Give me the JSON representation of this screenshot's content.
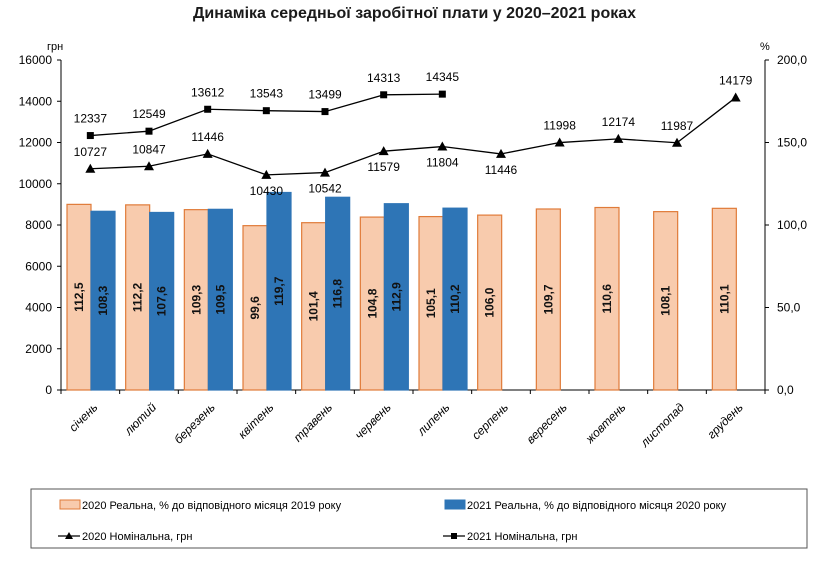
{
  "chart_data": {
    "type": "bar+line",
    "title": "Динаміка середньої заробітної плати у 2020–2021 роках",
    "ylabel_left": "грн",
    "ylabel_right": "%",
    "ylim_left": [
      0,
      16000
    ],
    "ylim_right": [
      0,
      200
    ],
    "yticks_left": [
      "0",
      "2000",
      "4000",
      "6000",
      "8000",
      "10000",
      "12000",
      "14000",
      "16000"
    ],
    "yticks_right": [
      "0,0",
      "50,0",
      "100,0",
      "150,0",
      "200,0"
    ],
    "categories": [
      "січень",
      "лютий",
      "березень",
      "квітень",
      "травень",
      "червень",
      "липень",
      "серпень",
      "вересень",
      "жовтень",
      "листопад",
      "грудень"
    ],
    "grid": false,
    "legend_position": "bottom",
    "bar_series": [
      {
        "name": "2020 Реальна, % до відповідного місяця 2019 року",
        "axis": "right",
        "color": "#F8CBAD",
        "edge": "#E07B39",
        "values": [
          112.5,
          112.2,
          109.3,
          99.6,
          101.4,
          104.8,
          105.1,
          106.0,
          109.7,
          110.6,
          108.1,
          110.1
        ],
        "labels": [
          "112,5",
          "112,2",
          "109,3",
          "99,6",
          "101,4",
          "104,8",
          "105,1",
          "106,0",
          "109,7",
          "110,6",
          "108,1",
          "110,1"
        ]
      },
      {
        "name": "2021 Реальна, % до відповідного місяця 2020 року",
        "axis": "right",
        "color": "#2E75B6",
        "edge": "#2E75B6",
        "values": [
          108.3,
          107.6,
          109.5,
          119.7,
          116.8,
          112.9,
          110.2
        ],
        "labels": [
          "108,3",
          "107,6",
          "109,5",
          "119,7",
          "116,8",
          "112,9",
          "110,2"
        ]
      }
    ],
    "line_series": [
      {
        "name": "2020 Номінальна, грн",
        "axis": "left",
        "marker": "triangle",
        "values": [
          10727,
          10847,
          11446,
          10430,
          10542,
          11579,
          11804,
          11446,
          11998,
          12174,
          11987,
          14179
        ],
        "label_below": [
          false,
          false,
          false,
          true,
          true,
          true,
          true,
          true,
          false,
          false,
          false,
          false
        ]
      },
      {
        "name": "2021 Номінальна, грн",
        "axis": "left",
        "marker": "square",
        "values": [
          12337,
          12549,
          13612,
          13543,
          13499,
          14313,
          14345
        ]
      }
    ]
  }
}
